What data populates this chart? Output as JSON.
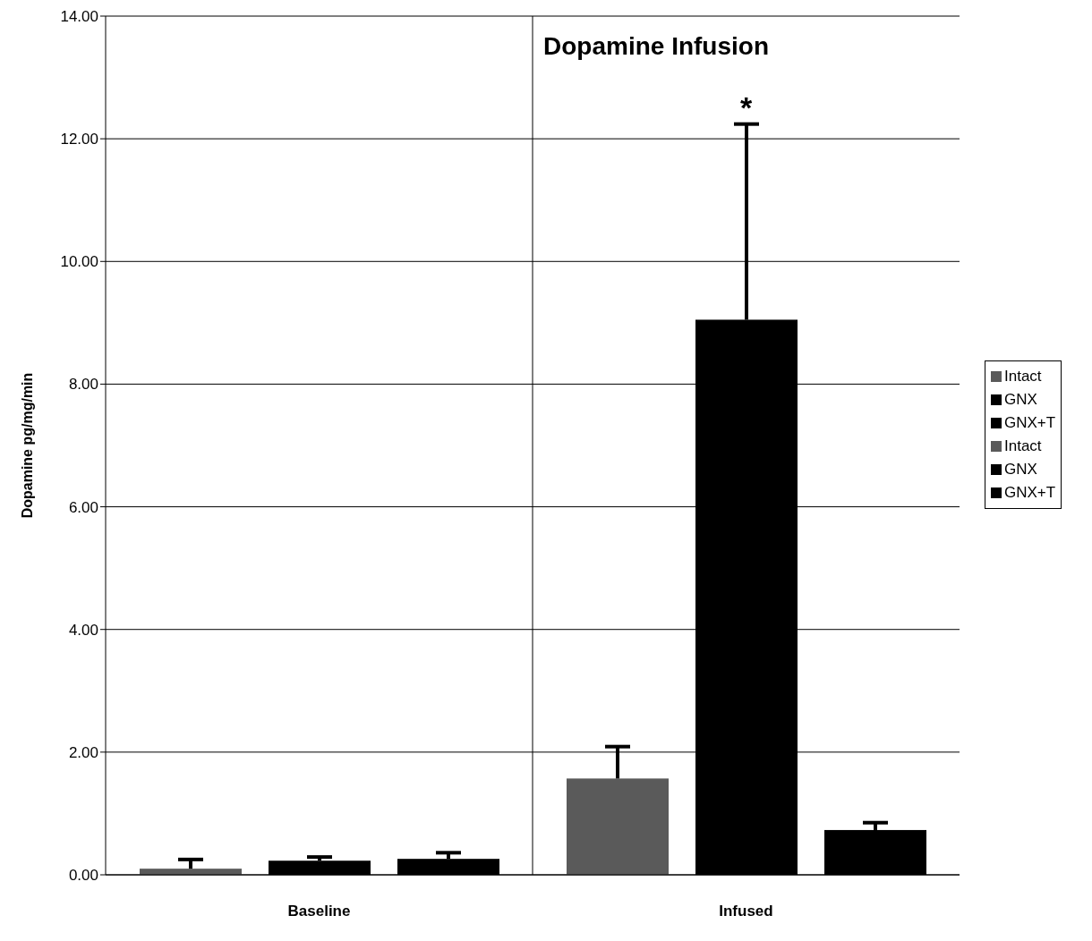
{
  "chart_data": {
    "type": "bar",
    "title": "Dopamine Infusion",
    "ylabel": "Dopamine pg/mg/min",
    "categories": [
      "Baseline",
      "Infused"
    ],
    "series": [
      {
        "name": "Intact",
        "color": "#5a5a5a",
        "values": [
          0.1,
          null
        ],
        "errors": [
          [
            0.1,
            0.25
          ],
          null
        ]
      },
      {
        "name": "GNX",
        "color": "#000000",
        "values": [
          0.23,
          null
        ],
        "errors": [
          [
            0.23,
            0.29
          ],
          null
        ]
      },
      {
        "name": "GNX+T",
        "color": "#000000",
        "values": [
          0.26,
          null
        ],
        "errors": [
          [
            0.26,
            0.36
          ],
          null
        ]
      },
      {
        "name": "Intact",
        "color": "#5a5a5a",
        "values": [
          null,
          1.57
        ],
        "errors": [
          null,
          [
            1.57,
            2.09
          ]
        ]
      },
      {
        "name": "GNX",
        "color": "#000000",
        "values": [
          null,
          9.05
        ],
        "errors": [
          null,
          [
            9.05,
            12.24
          ]
        ]
      },
      {
        "name": "GNX+T",
        "color": "#000000",
        "values": [
          null,
          0.73
        ],
        "errors": [
          null,
          [
            0.73,
            0.85
          ]
        ]
      }
    ],
    "ylim": [
      0,
      14
    ],
    "yticks": [
      {
        "value": 0,
        "label": "0.00"
      },
      {
        "value": 2,
        "label": "2.00"
      },
      {
        "value": 4,
        "label": "4.00"
      },
      {
        "value": 6,
        "label": "6.00"
      },
      {
        "value": 8,
        "label": "8.00"
      },
      {
        "value": 10,
        "label": "10.00"
      },
      {
        "value": 12,
        "label": "12.00"
      },
      {
        "value": 14,
        "label": "14.00"
      }
    ],
    "annotations": [
      "*"
    ],
    "grid": true,
    "legend": "right"
  }
}
